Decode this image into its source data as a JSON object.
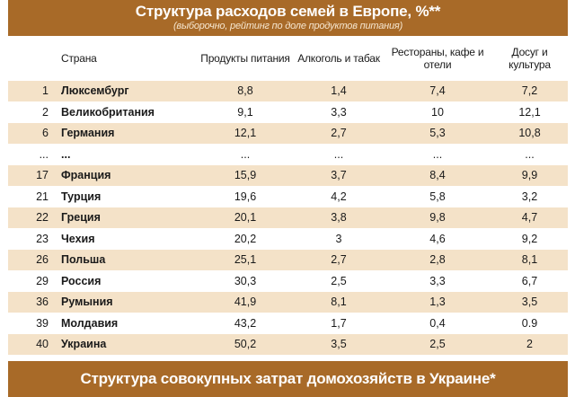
{
  "header": {
    "title": "Структура расходов семей в Европе, %**",
    "subtitle": "(выборочно, рейтинг по доле продуктов питания)"
  },
  "table": {
    "columns": {
      "country": "Страна",
      "food": "Продукты питания",
      "alcohol": "Алкоголь и табак",
      "restaurants": "Рестораны, кафе и отели",
      "leisure": "Досуг и культура"
    },
    "rows": [
      {
        "rank": "1",
        "country": "Люксембург",
        "food": "8,8",
        "alcohol": "1,4",
        "restaurants": "7,4",
        "leisure": "7,2"
      },
      {
        "rank": "2",
        "country": "Великобритания",
        "food": "9,1",
        "alcohol": "3,3",
        "restaurants": "10",
        "leisure": "12,1"
      },
      {
        "rank": "6",
        "country": "Германия",
        "food": "12,1",
        "alcohol": "2,7",
        "restaurants": "5,3",
        "leisure": "10,8"
      },
      {
        "rank": "...",
        "country": "...",
        "food": "...",
        "alcohol": "...",
        "restaurants": "...",
        "leisure": "..."
      },
      {
        "rank": "17",
        "country": "Франция",
        "food": "15,9",
        "alcohol": "3,7",
        "restaurants": "8,4",
        "leisure": "9,9"
      },
      {
        "rank": "21",
        "country": "Турция",
        "food": "19,6",
        "alcohol": "4,2",
        "restaurants": "5,8",
        "leisure": "3,2"
      },
      {
        "rank": "22",
        "country": "Греция",
        "food": "20,1",
        "alcohol": "3,8",
        "restaurants": "9,8",
        "leisure": "4,7"
      },
      {
        "rank": "23",
        "country": "Чехия",
        "food": "20,2",
        "alcohol": "3",
        "restaurants": "4,6",
        "leisure": "9,2"
      },
      {
        "rank": "26",
        "country": "Польша",
        "food": "25,1",
        "alcohol": "2,7",
        "restaurants": "2,8",
        "leisure": "8,1"
      },
      {
        "rank": "29",
        "country": "Россия",
        "food": "30,3",
        "alcohol": "2,5",
        "restaurants": "3,3",
        "leisure": "6,7"
      },
      {
        "rank": "36",
        "country": "Румыния",
        "food": "41,9",
        "alcohol": "8,1",
        "restaurants": "1,3",
        "leisure": "3,5"
      },
      {
        "rank": "39",
        "country": "Молдавия",
        "food": "43,2",
        "alcohol": "1,7",
        "restaurants": "0,4",
        "leisure": "0.9"
      },
      {
        "rank": "40",
        "country": "Украина",
        "food": "50,2",
        "alcohol": "3,5",
        "restaurants": "2,5",
        "leisure": "2"
      }
    ]
  },
  "footer": {
    "title": "Структура совокупных затрат домохозяйств в Украине*"
  },
  "colors": {
    "header_bg": "#a86a28",
    "stripe_bg": "#f4e2c8"
  }
}
